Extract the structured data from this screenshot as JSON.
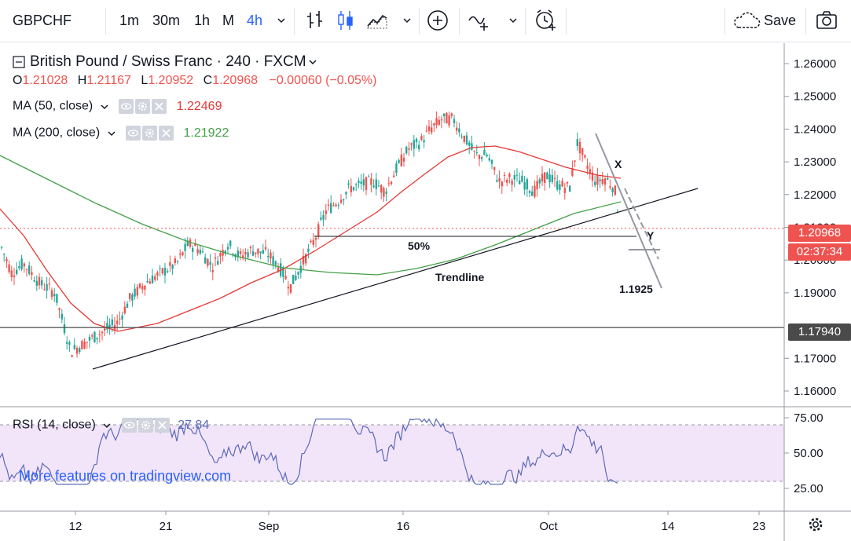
{
  "toolbar": {
    "symbol": "GBPCHF",
    "intervals": [
      {
        "label": "1m",
        "active": false
      },
      {
        "label": "30m",
        "active": false
      },
      {
        "label": "1h",
        "active": false
      },
      {
        "label": "M",
        "active": false
      },
      {
        "label": "4h",
        "active": true
      }
    ],
    "save_label": "Save",
    "icons": [
      "chevron-down-icon",
      "bar-chart-icon",
      "candles-icon",
      "area-chart-icon",
      "chevron-down-icon",
      "add-indicator-icon",
      "line-tool-icon",
      "chevron-down-icon",
      "alert-icon",
      "cloud-icon",
      "camera-icon"
    ]
  },
  "legend": {
    "title": "British Pound / Swiss Franc · 240 · FXCM",
    "ohlc": {
      "o_label": "O",
      "o_value": "1.21028",
      "h_label": "H",
      "h_value": "1.21167",
      "l_label": "L",
      "l_value": "1.20952",
      "c_label": "C",
      "c_value": "1.20968",
      "change": "−0.00060 (−0.05%)"
    },
    "ma50": {
      "label": "MA (50, close)",
      "value": "1.22469",
      "color": "#e53935"
    },
    "ma200": {
      "label": "MA (200, close)",
      "value": "1.21922",
      "color": "#43a047"
    },
    "rsi": {
      "label": "RSI (14, close)",
      "value": "27.84",
      "color": "#5a6ab8"
    }
  },
  "colors": {
    "up": "#26a69a",
    "down": "#ef5350",
    "ma50": "#e53935",
    "ma200": "#43a047",
    "rsi_line": "#5a6ab8",
    "rsi_band": "#f3e5f9",
    "price_tag": "#ef5350",
    "level_tag": "#4a4a4a"
  },
  "price_axis": {
    "ticks": [
      "1.26000",
      "1.25000",
      "1.24000",
      "1.23000",
      "1.22000",
      "1.21000",
      "1.20000",
      "1.19000",
      "1.17000",
      "1.16000"
    ],
    "current_price": "1.20968",
    "countdown": "02:37:34",
    "level_price": "1.17940"
  },
  "rsi_axis": {
    "ticks": [
      "75.00",
      "50.00",
      "25.00"
    ]
  },
  "time_axis": {
    "ticks": [
      "12",
      "21",
      "Sep",
      "16",
      "Oct",
      "14",
      "23"
    ]
  },
  "annotations": {
    "fifty": "50%",
    "trendline": "Trendline",
    "target": "1.1925",
    "x_label": "X",
    "y_label": "Y",
    "watermark": "More features on tradingview.com"
  },
  "chart_data": {
    "type": "candlestick",
    "symbol": "GBPCHF",
    "timeframe": "240",
    "y_range": [
      1.155,
      1.265
    ],
    "anchors": [
      [
        0,
        1.2
      ]
    ],
    "ma50_anchors": [],
    "ma200_anchors": [],
    "rsi_anchors": []
  }
}
